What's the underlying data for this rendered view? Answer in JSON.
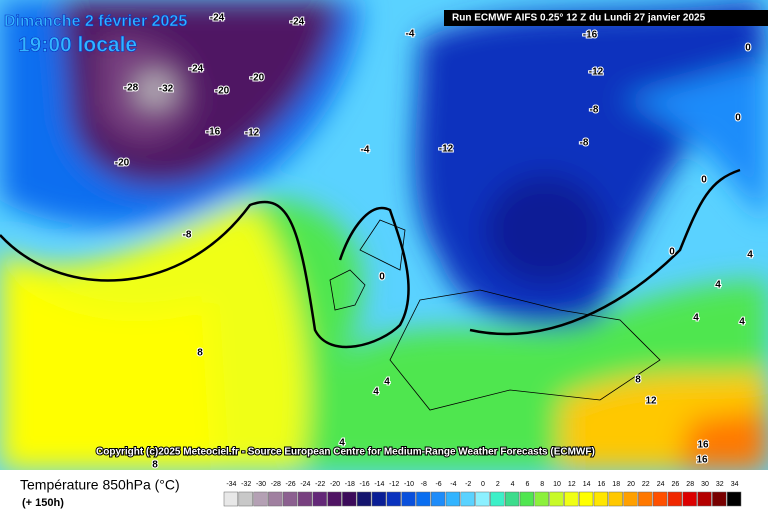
{
  "header": {
    "title": "Dimanche 2 février 2025",
    "subtitle": "19:00 locale",
    "run": "Run ECMWF AIFS 0.25° 12 Z du Lundi 27 janvier 2025"
  },
  "copyright": "Copyright (c)2025 Meteociel.fr - Source European Centre for Medium-Range Weather Forecasts (ECMWF)",
  "legend": {
    "title": "Température 850hPa (°C)",
    "lead": "(+ 150h)",
    "ticks": [
      -34,
      -32,
      -30,
      -28,
      -26,
      -24,
      -22,
      -20,
      -18,
      -16,
      -14,
      -12,
      -10,
      -8,
      -6,
      -4,
      -2,
      0,
      2,
      4,
      6,
      8,
      10,
      12,
      14,
      16,
      18,
      20,
      22,
      24,
      26,
      28,
      30,
      32,
      34
    ],
    "colors": [
      "#e8e8e8",
      "#c8c8c8",
      "#b4a0b4",
      "#a080a0",
      "#8c6090",
      "#784080",
      "#642878",
      "#501464",
      "#3c0a5a",
      "#14146e",
      "#0a1e96",
      "#0a32be",
      "#0a50dc",
      "#0a6ef0",
      "#1e8cfa",
      "#32b4ff",
      "#5ad2ff",
      "#8cf0ff",
      "#3cf0c8",
      "#3cdc8c",
      "#50e650",
      "#8cf03c",
      "#c8fa28",
      "#f0ff14",
      "#ffff00",
      "#ffe600",
      "#ffc800",
      "#ffa000",
      "#ff7800",
      "#ff5000",
      "#f02800",
      "#dc0000",
      "#b40000",
      "#780000",
      "#000000"
    ]
  },
  "contour_labels": [
    -24,
    -24,
    -4,
    -16,
    -12,
    -24,
    -20,
    -28,
    -32,
    -20,
    -16,
    -12,
    -8,
    -8,
    -12,
    -4,
    -20,
    -8,
    0,
    0,
    0,
    0,
    4,
    4,
    4,
    4,
    8,
    4,
    4,
    8,
    12,
    16,
    16,
    8,
    4,
    0
  ]
}
